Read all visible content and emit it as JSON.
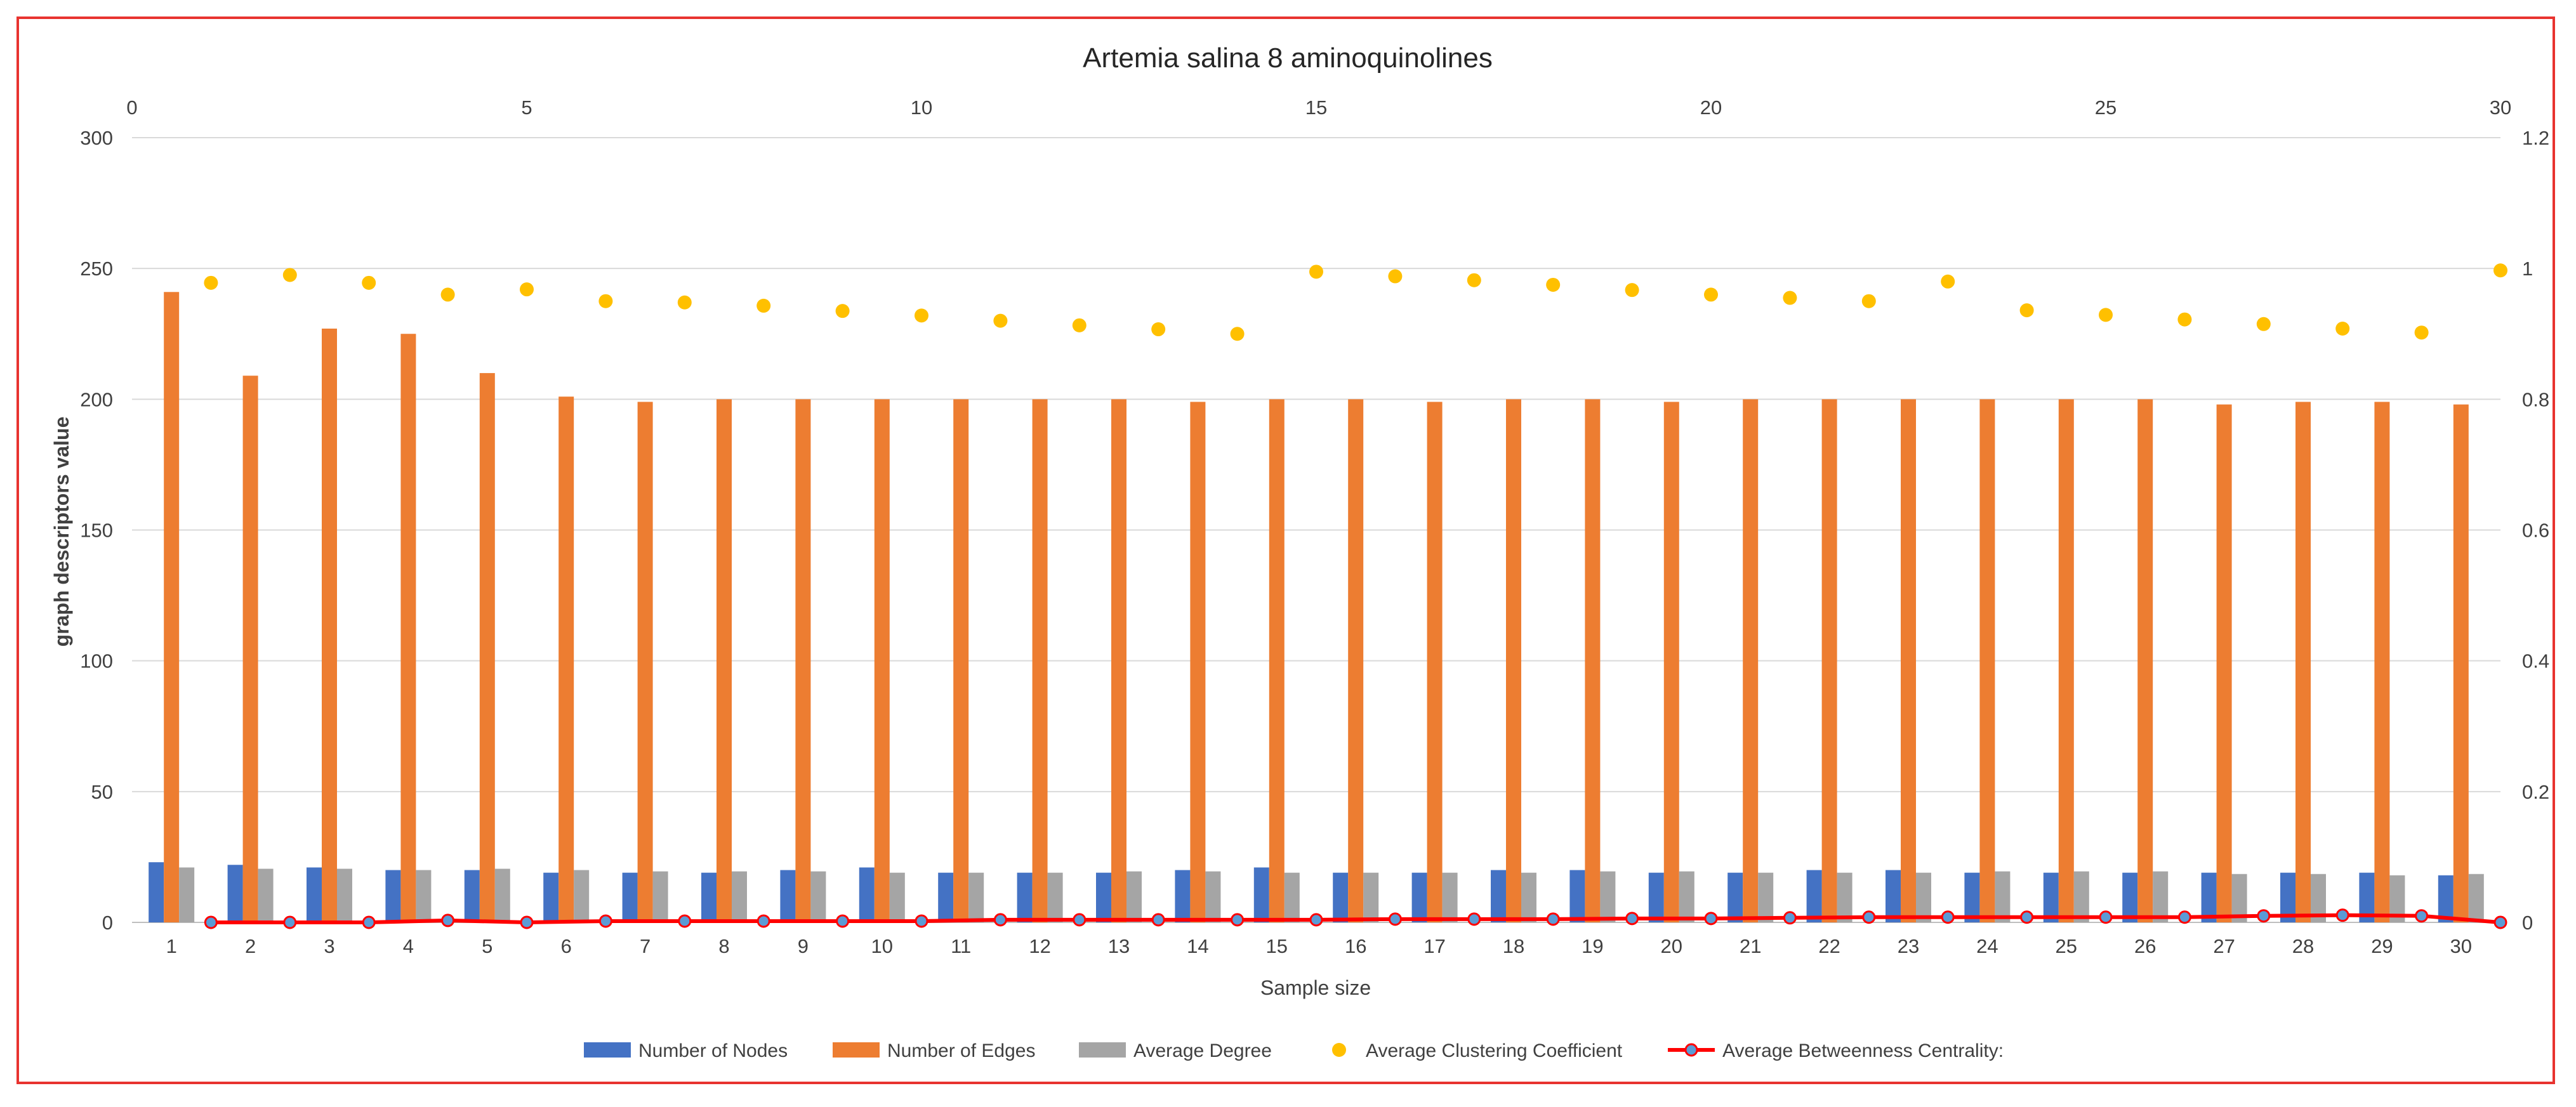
{
  "chart_data": {
    "type": "bar",
    "title": "Artemia salina 8 aminoquinolines",
    "xlabel": "Sample size",
    "ylabel": "graph descriptors value",
    "ylim": [
      0,
      300
    ],
    "y_ticks": [
      "0",
      "50",
      "100",
      "150",
      "200",
      "250",
      "300"
    ],
    "y2lim": [
      0,
      1.2
    ],
    "y2_ticks": [
      "0",
      "0.2",
      "0.4",
      "0.6",
      "0.8",
      "1",
      "1.2"
    ],
    "x2lim": [
      0,
      30
    ],
    "x2_ticks": [
      "0",
      "5",
      "10",
      "15",
      "20",
      "25",
      "30"
    ],
    "categories": [
      "1",
      "2",
      "3",
      "4",
      "5",
      "6",
      "7",
      "8",
      "9",
      "10",
      "11",
      "12",
      "13",
      "14",
      "15",
      "16",
      "17",
      "18",
      "19",
      "20",
      "21",
      "22",
      "23",
      "24",
      "25",
      "26",
      "27",
      "28",
      "29",
      "30"
    ],
    "series": [
      {
        "name": "Number of Nodes",
        "kind": "bar",
        "axis": "primary",
        "color": "#4472C4",
        "values": [
          23,
          22,
          21,
          20,
          20,
          19,
          19,
          19,
          20,
          21,
          19,
          19,
          19,
          20,
          21,
          19,
          19,
          20,
          20,
          19,
          19,
          20,
          20,
          19,
          19,
          19,
          19,
          19,
          19,
          18
        ]
      },
      {
        "name": "Number of Edges",
        "kind": "bar",
        "axis": "primary",
        "color": "#ED7D31",
        "values": [
          241,
          209,
          227,
          225,
          210,
          201,
          199,
          200,
          200,
          200,
          200,
          200,
          200,
          199,
          200,
          200,
          199,
          200,
          200,
          199,
          200,
          200,
          200,
          200,
          200,
          200,
          198,
          199,
          199,
          198
        ]
      },
      {
        "name": "Average Degree",
        "kind": "bar",
        "axis": "primary",
        "color": "#A5A5A5",
        "values": [
          21,
          20.5,
          20.5,
          20,
          20.5,
          20,
          19.5,
          19.5,
          19.5,
          19,
          19,
          19,
          19.5,
          19.5,
          19,
          19,
          19,
          19,
          19.5,
          19.5,
          19,
          19,
          19,
          19.5,
          19.5,
          19.5,
          18.5,
          18.5,
          18,
          18.5
        ]
      },
      {
        "name": "Average Clustering Coefficient",
        "kind": "scatter",
        "axis": "secondary",
        "color": "#FFC000",
        "x": [
          1,
          2,
          3,
          4,
          5,
          6,
          7,
          8,
          9,
          10,
          11,
          12,
          13,
          14,
          15,
          16,
          17,
          18,
          19,
          20,
          21,
          22,
          23,
          24,
          25,
          26,
          27,
          28,
          29,
          30
        ],
        "values": [
          0.978,
          0.99,
          0.978,
          0.96,
          0.968,
          0.95,
          0.948,
          0.943,
          0.935,
          0.928,
          0.92,
          0.913,
          0.907,
          0.9,
          0.995,
          0.988,
          0.982,
          0.975,
          0.967,
          0.96,
          0.955,
          0.95,
          0.98,
          0.936,
          0.929,
          0.922,
          0.915,
          0.908,
          0.902,
          0.997
        ]
      },
      {
        "name": "Average Betweenness Centrality:",
        "kind": "line",
        "axis": "secondary",
        "color": "#FF0000",
        "marker_color": "#5B9BD5",
        "x": [
          1,
          2,
          3,
          4,
          5,
          6,
          7,
          8,
          9,
          10,
          11,
          12,
          13,
          14,
          15,
          16,
          17,
          18,
          19,
          20,
          21,
          22,
          23,
          24,
          25,
          26,
          27,
          28,
          29,
          30
        ],
        "values": [
          0,
          0,
          0,
          0.003,
          0,
          0.002,
          0.002,
          0.002,
          0.002,
          0.002,
          0.004,
          0.004,
          0.004,
          0.004,
          0.004,
          0.005,
          0.005,
          0.005,
          0.006,
          0.006,
          0.007,
          0.008,
          0.008,
          0.008,
          0.008,
          0.008,
          0.01,
          0.011,
          0.01,
          0
        ]
      }
    ],
    "legend": "bottom",
    "grid": true
  }
}
